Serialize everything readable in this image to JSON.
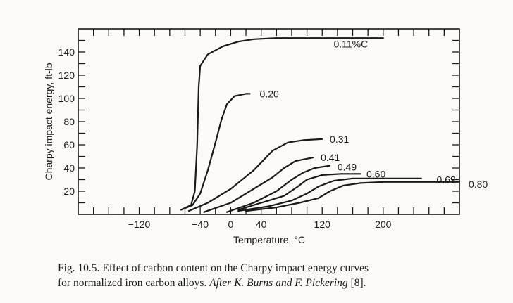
{
  "chart_data": {
    "type": "line",
    "xlabel": "Temperature, °C",
    "ylabel": "Charpy impact energy, ft-lb",
    "xlim": [
      -200,
      300
    ],
    "ylim": [
      0,
      160
    ],
    "x_ticks": [
      -120,
      -40,
      0,
      40,
      120,
      200
    ],
    "y_ticks": [
      20,
      40,
      60,
      80,
      100,
      120,
      140
    ],
    "grid": false,
    "series": [
      {
        "name": "0.11%C",
        "points": [
          [
            -65,
            4
          ],
          [
            -52,
            8
          ],
          [
            -47,
            20
          ],
          [
            -44,
            60
          ],
          [
            -42,
            110
          ],
          [
            -40,
            128
          ],
          [
            -30,
            138
          ],
          [
            -10,
            145
          ],
          [
            10,
            149
          ],
          [
            30,
            151
          ],
          [
            60,
            152
          ],
          [
            120,
            152
          ],
          [
            200,
            152
          ]
        ]
      },
      {
        "name": "0.20",
        "points": [
          [
            -65,
            4
          ],
          [
            -50,
            8
          ],
          [
            -40,
            18
          ],
          [
            -30,
            38
          ],
          [
            -20,
            62
          ],
          [
            -12,
            82
          ],
          [
            -5,
            95
          ],
          [
            5,
            102
          ],
          [
            20,
            104
          ],
          [
            25,
            104
          ]
        ]
      },
      {
        "name": "0.31",
        "points": [
          [
            -55,
            3
          ],
          [
            -30,
            10
          ],
          [
            0,
            22
          ],
          [
            30,
            38
          ],
          [
            55,
            55
          ],
          [
            75,
            62
          ],
          [
            95,
            64
          ],
          [
            120,
            65
          ]
        ]
      },
      {
        "name": "0.41",
        "points": [
          [
            -35,
            2
          ],
          [
            0,
            10
          ],
          [
            30,
            22
          ],
          [
            55,
            32
          ],
          [
            70,
            40
          ],
          [
            85,
            46
          ],
          [
            100,
            48
          ],
          [
            108,
            49
          ]
        ]
      },
      {
        "name": "0.49",
        "points": [
          [
            -5,
            2
          ],
          [
            30,
            10
          ],
          [
            60,
            20
          ],
          [
            80,
            30
          ],
          [
            95,
            36
          ],
          [
            110,
            40
          ],
          [
            130,
            42
          ]
        ]
      },
      {
        "name": "0.60",
        "points": [
          [
            10,
            4
          ],
          [
            40,
            10
          ],
          [
            70,
            16
          ],
          [
            88,
            24
          ],
          [
            100,
            30
          ],
          [
            120,
            34
          ],
          [
            145,
            35
          ],
          [
            170,
            35
          ]
        ]
      },
      {
        "name": "0.69",
        "points": [
          [
            10,
            3
          ],
          [
            50,
            7
          ],
          [
            80,
            12
          ],
          [
            100,
            18
          ],
          [
            115,
            24
          ],
          [
            135,
            29
          ],
          [
            160,
            31
          ],
          [
            250,
            31
          ]
        ]
      },
      {
        "name": "0.80",
        "points": [
          [
            20,
            3
          ],
          [
            60,
            6
          ],
          [
            90,
            10
          ],
          [
            115,
            14
          ],
          [
            130,
            20
          ],
          [
            148,
            25
          ],
          [
            170,
            27
          ],
          [
            200,
            28
          ],
          [
            300,
            28
          ]
        ]
      }
    ],
    "labels": [
      {
        "text": "0.11%C",
        "x": 135,
        "y": 147
      },
      {
        "text": "0.20",
        "x": 38,
        "y": 104
      },
      {
        "text": "0.31",
        "x": 130,
        "y": 65
      },
      {
        "text": "0.41",
        "x": 118,
        "y": 49
      },
      {
        "text": "0.49",
        "x": 140,
        "y": 41
      },
      {
        "text": "0.60",
        "x": 178,
        "y": 35
      },
      {
        "text": "0.69",
        "x": 270,
        "y": 30
      },
      {
        "text": "0.80",
        "x": 312,
        "y": 26
      }
    ]
  },
  "caption": {
    "line1": "Fig. 10.5. Effect of carbon content on the Charpy impact energy curves",
    "line2_plain": "for normalized iron carbon alloys.",
    "line2_italic": "After K. Burns and F. Pickering",
    "line2_ref": "[8]."
  }
}
